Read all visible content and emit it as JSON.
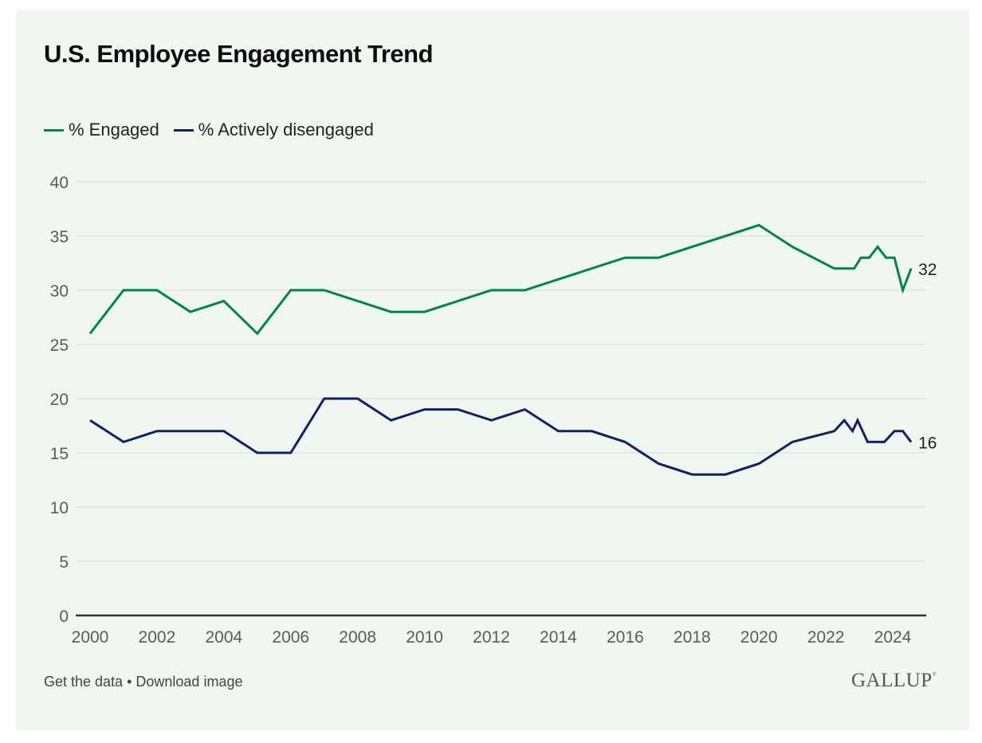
{
  "page": {
    "footer": {
      "get_data": "Get the data",
      "separator": " • ",
      "download": "Download image"
    },
    "logo": "GALLUP",
    "logo_mark": "®"
  },
  "colors": {
    "background": "#f0f7f0",
    "engaged": "#00844a",
    "disengaged": "#141f66",
    "grid": "#dde2dd",
    "axis": "#333333",
    "tick_text": "#5a5a5a"
  },
  "chart_data": {
    "type": "line",
    "title": "U.S. Employee Engagement Trend",
    "xlabel": "",
    "ylabel": "",
    "xlim": [
      2000,
      2024.6
    ],
    "ylim": [
      0,
      40
    ],
    "grid": true,
    "legend_position": "top-left",
    "x_ticks": [
      2000,
      2002,
      2004,
      2006,
      2008,
      2010,
      2012,
      2014,
      2016,
      2018,
      2020,
      2022,
      2024
    ],
    "y_ticks": [
      0,
      5,
      10,
      15,
      20,
      25,
      30,
      35,
      40
    ],
    "series": [
      {
        "name": "% Engaged",
        "color": "#00844a",
        "end_label": "32",
        "points": [
          [
            2000,
            26
          ],
          [
            2001,
            30
          ],
          [
            2002,
            30
          ],
          [
            2003,
            28
          ],
          [
            2004,
            29
          ],
          [
            2005,
            26
          ],
          [
            2006,
            30
          ],
          [
            2007,
            30
          ],
          [
            2009,
            28
          ],
          [
            2010,
            28
          ],
          [
            2012,
            30
          ],
          [
            2013,
            30
          ],
          [
            2016,
            33
          ],
          [
            2017,
            33
          ],
          [
            2020,
            36
          ],
          [
            2021,
            34
          ],
          [
            2022.25,
            32
          ],
          [
            2022.85,
            32
          ],
          [
            2023.05,
            33
          ],
          [
            2023.3,
            33
          ],
          [
            2023.55,
            34
          ],
          [
            2023.8,
            33
          ],
          [
            2024.05,
            33
          ],
          [
            2024.3,
            30
          ],
          [
            2024.55,
            32
          ]
        ]
      },
      {
        "name": "% Actively disengaged",
        "color": "#141f66",
        "end_label": "16",
        "points": [
          [
            2000,
            18
          ],
          [
            2001,
            16
          ],
          [
            2002,
            17
          ],
          [
            2004,
            17
          ],
          [
            2005,
            15
          ],
          [
            2006,
            15
          ],
          [
            2007,
            20
          ],
          [
            2008,
            20
          ],
          [
            2009,
            18
          ],
          [
            2010,
            19
          ],
          [
            2011,
            19
          ],
          [
            2012,
            18
          ],
          [
            2013,
            19
          ],
          [
            2014,
            17
          ],
          [
            2015,
            17
          ],
          [
            2016,
            16
          ],
          [
            2017,
            14
          ],
          [
            2018,
            13
          ],
          [
            2019,
            13
          ],
          [
            2020,
            14
          ],
          [
            2021,
            16
          ],
          [
            2022.25,
            17
          ],
          [
            2022.55,
            18
          ],
          [
            2022.8,
            17
          ],
          [
            2022.95,
            18
          ],
          [
            2023.25,
            16
          ],
          [
            2023.75,
            16
          ],
          [
            2024.05,
            17
          ],
          [
            2024.3,
            17
          ],
          [
            2024.55,
            16
          ]
        ]
      }
    ]
  }
}
